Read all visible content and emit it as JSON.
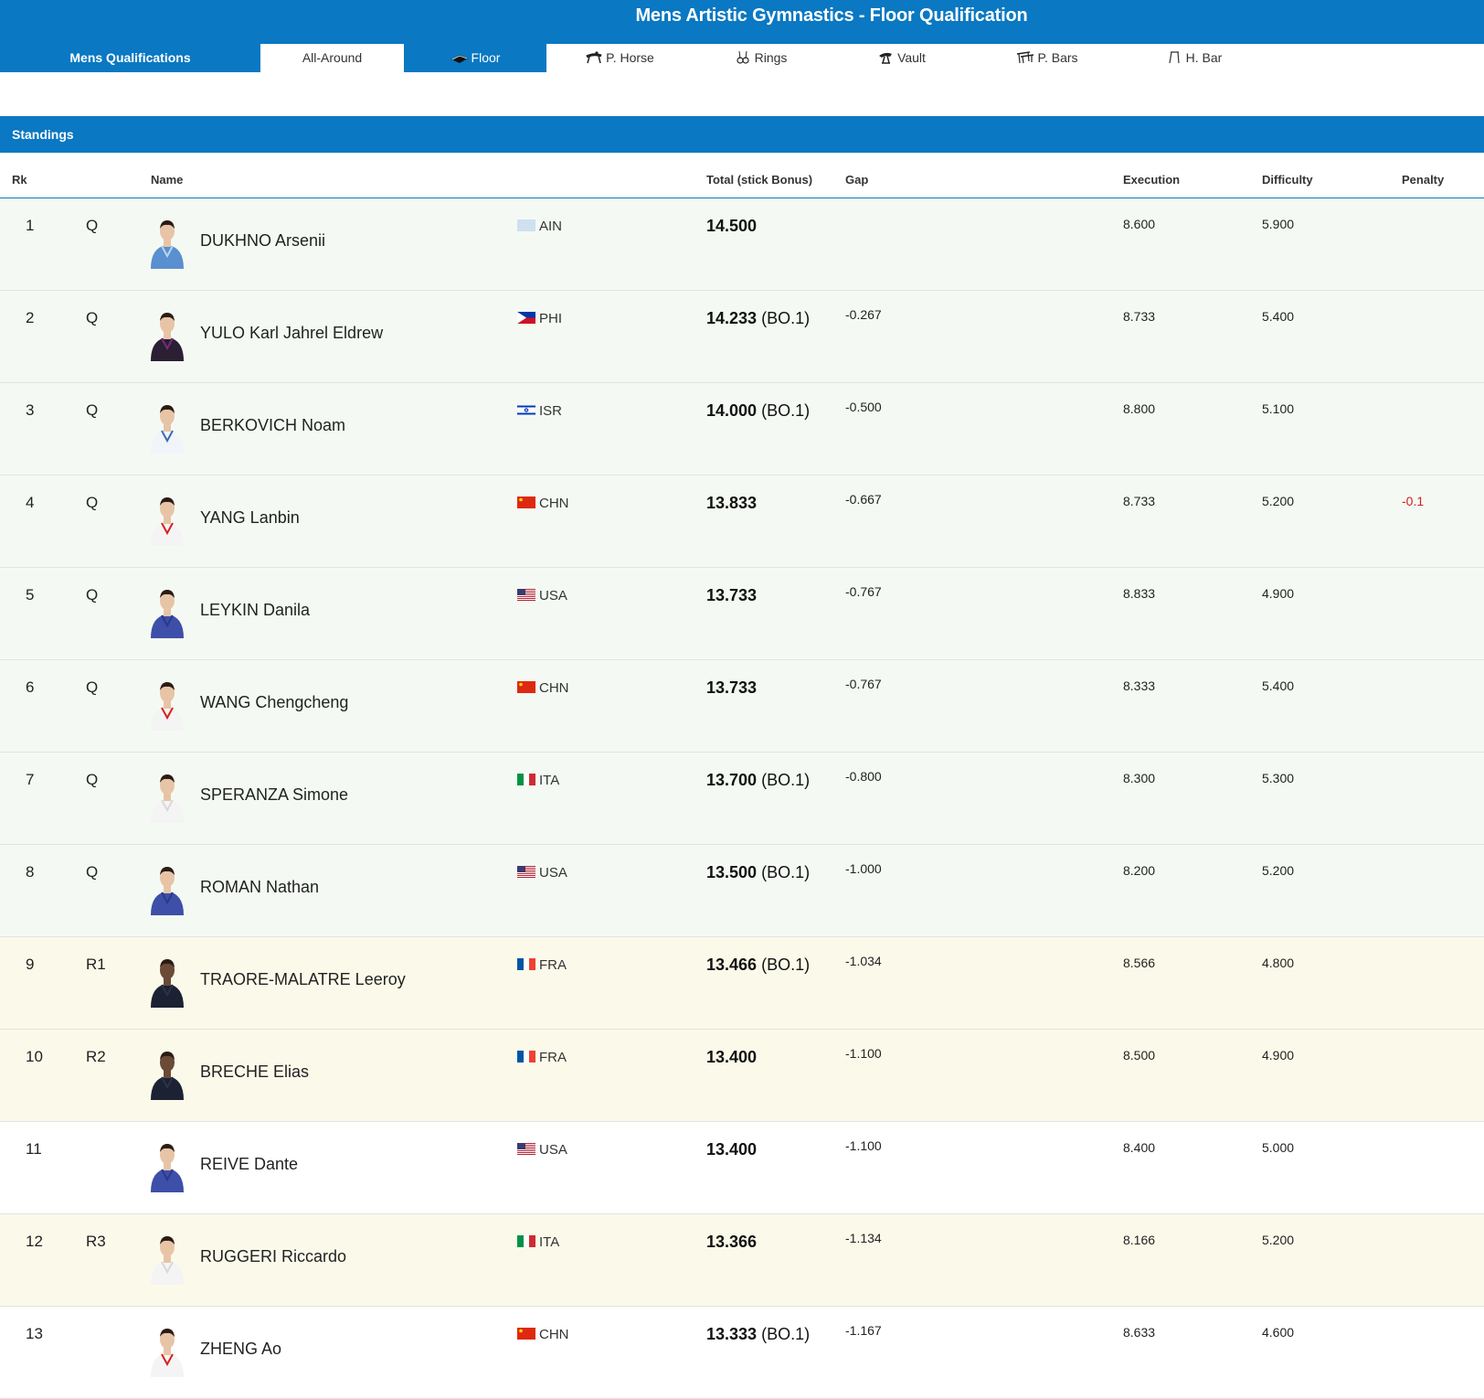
{
  "header": {
    "title": "Mens Artistic Gymnastics - Floor Qualification"
  },
  "tabs": [
    {
      "label": "Mens Qualifications",
      "icon": ""
    },
    {
      "label": "All-Around",
      "icon": ""
    },
    {
      "label": "Floor",
      "icon": "floor-icon"
    },
    {
      "label": "P. Horse",
      "icon": "pommel-horse-icon"
    },
    {
      "label": "Rings",
      "icon": "rings-icon"
    },
    {
      "label": "Vault",
      "icon": "vault-icon"
    },
    {
      "label": "P. Bars",
      "icon": "parallel-bars-icon"
    },
    {
      "label": "H. Bar",
      "icon": "high-bar-icon"
    }
  ],
  "standings_label": "Standings",
  "columns": {
    "rk": "Rk",
    "name": "Name",
    "total": "Total (stick Bonus)",
    "gap": "Gap",
    "execution": "Execution",
    "difficulty": "Difficulty",
    "penalty": "Penalty"
  },
  "colors": {
    "accent": "#0a78c2",
    "qualified_row": "#f4faf3",
    "reserve_row": "#fbfaea",
    "penalty": "#d02020"
  },
  "rows": [
    {
      "rk": "1",
      "qual": "Q",
      "name": "DUKHNO Arsenii",
      "country": "AIN",
      "total": "14.500",
      "bonus": "",
      "gap": "",
      "execution": "8.600",
      "difficulty": "5.900",
      "penalty": "",
      "kit": "ain"
    },
    {
      "rk": "2",
      "qual": "Q",
      "name": "YULO Karl Jahrel Eldrew",
      "country": "PHI",
      "total": "14.233",
      "bonus": "(BO.1)",
      "gap": "-0.267",
      "execution": "8.733",
      "difficulty": "5.400",
      "penalty": "",
      "kit": "phi"
    },
    {
      "rk": "3",
      "qual": "Q",
      "name": "BERKOVICH Noam",
      "country": "ISR",
      "total": "14.000",
      "bonus": "(BO.1)",
      "gap": "-0.500",
      "execution": "8.800",
      "difficulty": "5.100",
      "penalty": "",
      "kit": "isr"
    },
    {
      "rk": "4",
      "qual": "Q",
      "name": "YANG Lanbin",
      "country": "CHN",
      "total": "13.833",
      "bonus": "",
      "gap": "-0.667",
      "execution": "8.733",
      "difficulty": "5.200",
      "penalty": "-0.1",
      "kit": "chn"
    },
    {
      "rk": "5",
      "qual": "Q",
      "name": "LEYKIN Danila",
      "country": "USA",
      "total": "13.733",
      "bonus": "",
      "gap": "-0.767",
      "execution": "8.833",
      "difficulty": "4.900",
      "penalty": "",
      "kit": "usa"
    },
    {
      "rk": "6",
      "qual": "Q",
      "name": "WANG Chengcheng",
      "country": "CHN",
      "total": "13.733",
      "bonus": "",
      "gap": "-0.767",
      "execution": "8.333",
      "difficulty": "5.400",
      "penalty": "",
      "kit": "chn"
    },
    {
      "rk": "7",
      "qual": "Q",
      "name": "SPERANZA Simone",
      "country": "ITA",
      "total": "13.700",
      "bonus": "(BO.1)",
      "gap": "-0.800",
      "execution": "8.300",
      "difficulty": "5.300",
      "penalty": "",
      "kit": "ita"
    },
    {
      "rk": "8",
      "qual": "Q",
      "name": "ROMAN Nathan",
      "country": "USA",
      "total": "13.500",
      "bonus": "(BO.1)",
      "gap": "-1.000",
      "execution": "8.200",
      "difficulty": "5.200",
      "penalty": "",
      "kit": "usa"
    },
    {
      "rk": "9",
      "qual": "R1",
      "name": "TRAORE-MALATRE Leeroy",
      "country": "FRA",
      "total": "13.466",
      "bonus": "(BO.1)",
      "gap": "-1.034",
      "execution": "8.566",
      "difficulty": "4.800",
      "penalty": "",
      "kit": "fra"
    },
    {
      "rk": "10",
      "qual": "R2",
      "name": "BRECHE Elias",
      "country": "FRA",
      "total": "13.400",
      "bonus": "",
      "gap": "-1.100",
      "execution": "8.500",
      "difficulty": "4.900",
      "penalty": "",
      "kit": "fra"
    },
    {
      "rk": "11",
      "qual": "",
      "name": "REIVE Dante",
      "country": "USA",
      "total": "13.400",
      "bonus": "",
      "gap": "-1.100",
      "execution": "8.400",
      "difficulty": "5.000",
      "penalty": "",
      "kit": "usa"
    },
    {
      "rk": "12",
      "qual": "R3",
      "name": "RUGGERI Riccardo",
      "country": "ITA",
      "total": "13.366",
      "bonus": "",
      "gap": "-1.134",
      "execution": "8.166",
      "difficulty": "5.200",
      "penalty": "",
      "kit": "ita"
    },
    {
      "rk": "13",
      "qual": "",
      "name": "ZHENG Ao",
      "country": "CHN",
      "total": "13.333",
      "bonus": "(BO.1)",
      "gap": "-1.167",
      "execution": "8.633",
      "difficulty": "4.600",
      "penalty": "",
      "kit": "chn"
    }
  ]
}
